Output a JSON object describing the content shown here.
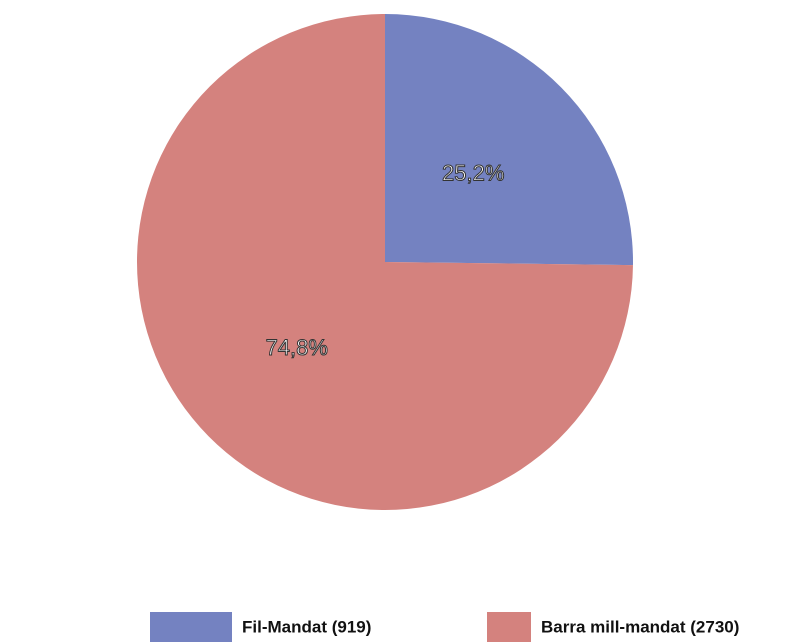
{
  "chart_data": {
    "type": "pie",
    "categories": [
      "Fil-Mandat (919)",
      "Barra mill-mandat (2730)"
    ],
    "values": [
      25.2,
      74.8
    ],
    "value_labels": [
      "25,2%",
      "74,8%"
    ],
    "colors": [
      "#7482c1",
      "#d4827e"
    ],
    "legend": "bottom"
  }
}
